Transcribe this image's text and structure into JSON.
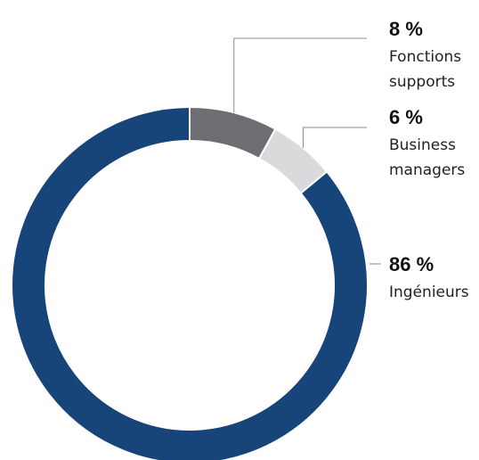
{
  "chart_data": {
    "type": "pie",
    "donut": true,
    "categories": [
      "Fonctions supports",
      "Business managers",
      "Ingénieurs"
    ],
    "values": [
      8,
      6,
      86
    ],
    "unit": "%",
    "slices": [
      {
        "value": 8,
        "value_label": "8 %",
        "label_lines": [
          "Fonctions",
          "supports"
        ],
        "color": "#6d6e71"
      },
      {
        "value": 6,
        "value_label": "6 %",
        "label_lines": [
          "Business",
          "managers"
        ],
        "color": "#d9dadb"
      },
      {
        "value": 86,
        "value_label": "86 %",
        "label_lines": [
          "Ingénieurs"
        ],
        "color": "#17457a"
      }
    ],
    "legend": "none"
  }
}
